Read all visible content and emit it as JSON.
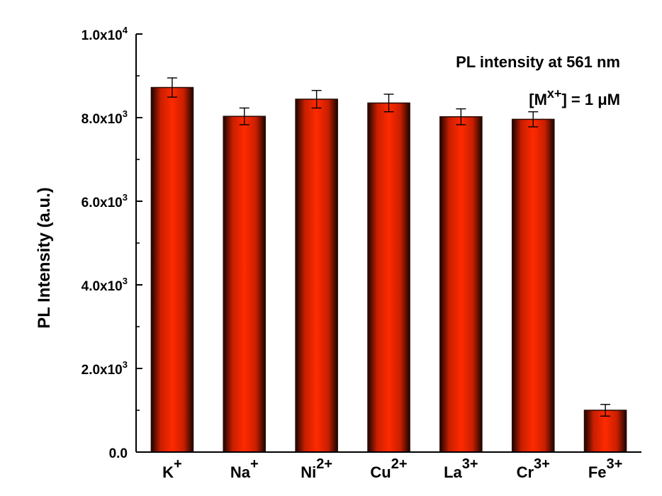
{
  "chart_data": {
    "type": "bar",
    "categories": [
      {
        "base": "K",
        "sup": "+"
      },
      {
        "base": "Na",
        "sup": "+"
      },
      {
        "base": "Ni",
        "sup": "2+"
      },
      {
        "base": "Cu",
        "sup": "2+"
      },
      {
        "base": "La",
        "sup": "3+"
      },
      {
        "base": "Cr",
        "sup": "3+"
      },
      {
        "base": "Fe",
        "sup": "3+"
      }
    ],
    "values": [
      8720,
      8030,
      8440,
      8350,
      8020,
      7960,
      1000
    ],
    "errors": [
      230,
      200,
      210,
      210,
      190,
      180,
      140
    ],
    "ylim": [
      0,
      10000
    ],
    "yticks": [
      {
        "value": 0,
        "mantissa": "0.0",
        "exp": ""
      },
      {
        "value": 2000,
        "mantissa": "2.0x10",
        "exp": "3"
      },
      {
        "value": 4000,
        "mantissa": "4.0x10",
        "exp": "3"
      },
      {
        "value": 6000,
        "mantissa": "6.0x10",
        "exp": "3"
      },
      {
        "value": 8000,
        "mantissa": "8.0x10",
        "exp": "3"
      },
      {
        "value": 10000,
        "mantissa": "1.0x10",
        "exp": "4"
      }
    ],
    "ylabel": "PL Intensity (a.u.)",
    "xlabel": "",
    "annotation": {
      "line1": "PL intensity at 561 nm",
      "line2_open": "[M",
      "line2_sup": "x+",
      "line2_close": "] = 1 μM"
    },
    "bar_color": "#ff2a00",
    "bar_edge_color": "#2a0a00",
    "grid": false,
    "legend": "none"
  }
}
